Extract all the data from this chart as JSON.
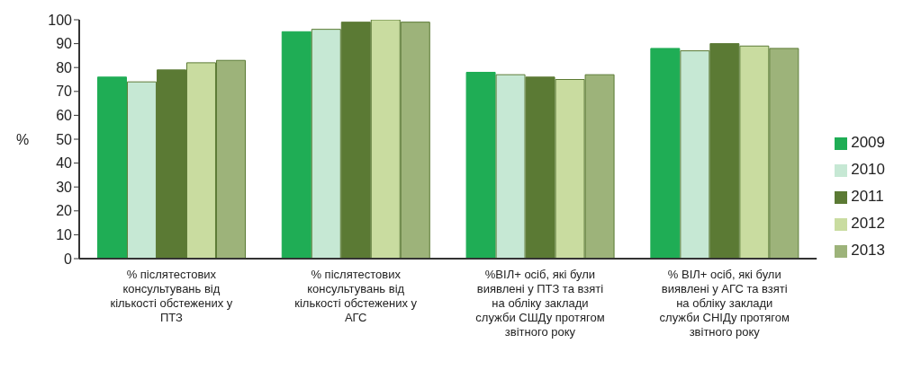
{
  "chart_data": {
    "type": "bar",
    "ylabel": "%",
    "categories": [
      "% післятестових консультувань від кількості обстежених у ПТЗ",
      "% післятестових консультувань від кількості обстежених у АГС",
      "%ВІЛ+ осіб, які були виявлені у ПТЗ та взяті на обліку заклади служби СШДу протягом звітного року",
      "% ВІЛ+ осіб, які були виявлені у АГС та взяті на обліку заклади служби СНІДу протягом звітного року"
    ],
    "series": [
      {
        "name": "2009",
        "color": "#1fad55",
        "values": [
          76,
          95,
          78,
          88
        ]
      },
      {
        "name": "2010",
        "color": "#c6e8d4",
        "values": [
          74,
          96,
          77,
          87
        ]
      },
      {
        "name": "2011",
        "color": "#5b7a34",
        "values": [
          79,
          99,
          76,
          90
        ]
      },
      {
        "name": "2012",
        "color": "#c9dca0",
        "values": [
          82,
          100,
          75,
          89
        ]
      },
      {
        "name": "2013",
        "color": "#9db37a",
        "values": [
          83,
          99,
          77,
          88
        ]
      }
    ],
    "ylim": [
      0,
      100
    ],
    "yticks": [
      0,
      10,
      20,
      30,
      40,
      50,
      60,
      70,
      80,
      90,
      100
    ],
    "grid": false,
    "legend": "right"
  }
}
